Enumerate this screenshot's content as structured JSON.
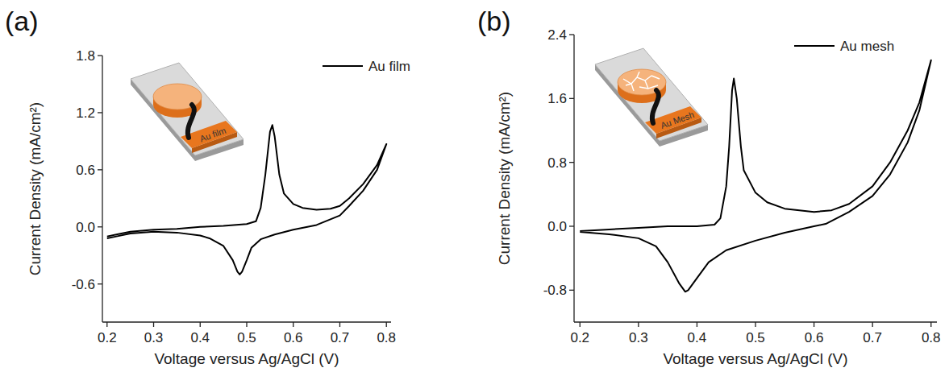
{
  "chart_data": [
    {
      "type": "line",
      "panel_label": "(a)",
      "inset_label": "Au film",
      "xlabel": "Voltage versus Ag/AgCl (V)",
      "ylabel": "Current Density (mA/cm²)",
      "x": [
        0.2,
        0.22,
        0.25,
        0.3,
        0.35,
        0.4,
        0.45,
        0.5,
        0.52,
        0.53,
        0.54,
        0.55,
        0.555,
        0.56,
        0.57,
        0.58,
        0.6,
        0.62,
        0.65,
        0.68,
        0.7,
        0.72,
        0.75,
        0.78,
        0.8,
        0.78,
        0.75,
        0.72,
        0.7,
        0.65,
        0.6,
        0.56,
        0.53,
        0.51,
        0.5,
        0.49,
        0.485,
        0.48,
        0.47,
        0.45,
        0.42,
        0.4,
        0.35,
        0.3,
        0.25,
        0.22,
        0.2
      ],
      "series": [
        {
          "name": "Au film",
          "color": "#000000",
          "values": [
            -0.1,
            -0.08,
            -0.05,
            -0.03,
            -0.02,
            0.0,
            0.01,
            0.03,
            0.06,
            0.2,
            0.55,
            1.0,
            1.07,
            0.95,
            0.55,
            0.35,
            0.24,
            0.2,
            0.18,
            0.19,
            0.22,
            0.3,
            0.45,
            0.65,
            0.87,
            0.6,
            0.38,
            0.22,
            0.12,
            0.02,
            -0.03,
            -0.08,
            -0.13,
            -0.22,
            -0.35,
            -0.47,
            -0.5,
            -0.47,
            -0.35,
            -0.2,
            -0.12,
            -0.09,
            -0.06,
            -0.05,
            -0.07,
            -0.1,
            -0.12
          ]
        }
      ],
      "xlim": [
        0.19,
        0.81
      ],
      "xticks": [
        0.2,
        0.3,
        0.4,
        0.5,
        0.6,
        0.7,
        0.8
      ],
      "ylim": [
        -1.0,
        1.8
      ],
      "yticks": [
        -0.6,
        {
          "value": 0,
          "label": "0.0"
        },
        0.6,
        1.2,
        1.8
      ],
      "legend": "upper right",
      "grid": false
    },
    {
      "type": "line",
      "panel_label": "(b)",
      "inset_label": "Au Mesh",
      "xlabel": "Voltage versus Ag/AgCl (V)",
      "ylabel": "Current Density (mA/cm²)",
      "x": [
        0.2,
        0.25,
        0.3,
        0.35,
        0.4,
        0.43,
        0.44,
        0.45,
        0.455,
        0.46,
        0.463,
        0.468,
        0.475,
        0.48,
        0.5,
        0.52,
        0.55,
        0.6,
        0.63,
        0.66,
        0.7,
        0.73,
        0.76,
        0.78,
        0.8,
        0.78,
        0.76,
        0.73,
        0.7,
        0.66,
        0.62,
        0.6,
        0.55,
        0.5,
        0.45,
        0.42,
        0.4,
        0.385,
        0.38,
        0.37,
        0.35,
        0.33,
        0.3,
        0.25,
        0.2
      ],
      "series": [
        {
          "name": "Au mesh",
          "color": "#000000",
          "values": [
            -0.06,
            -0.04,
            -0.02,
            0.0,
            0.0,
            0.02,
            0.1,
            0.5,
            1.0,
            1.7,
            1.85,
            1.6,
            1.0,
            0.7,
            0.42,
            0.3,
            0.22,
            0.18,
            0.2,
            0.28,
            0.5,
            0.8,
            1.2,
            1.55,
            2.08,
            1.45,
            1.05,
            0.65,
            0.38,
            0.18,
            0.03,
            0.0,
            -0.08,
            -0.18,
            -0.3,
            -0.45,
            -0.65,
            -0.8,
            -0.82,
            -0.72,
            -0.45,
            -0.25,
            -0.15,
            -0.1,
            -0.07
          ]
        }
      ],
      "xlim": [
        0.19,
        0.81
      ],
      "xticks": [
        0.2,
        0.3,
        0.4,
        0.5,
        0.6,
        0.7,
        0.8
      ],
      "ylim": [
        -1.2,
        2.4
      ],
      "yticks": [
        -0.8,
        {
          "value": 0,
          "label": "0.0"
        },
        0.8,
        1.6,
        2.4
      ],
      "legend": "upper right",
      "grid": false
    }
  ]
}
